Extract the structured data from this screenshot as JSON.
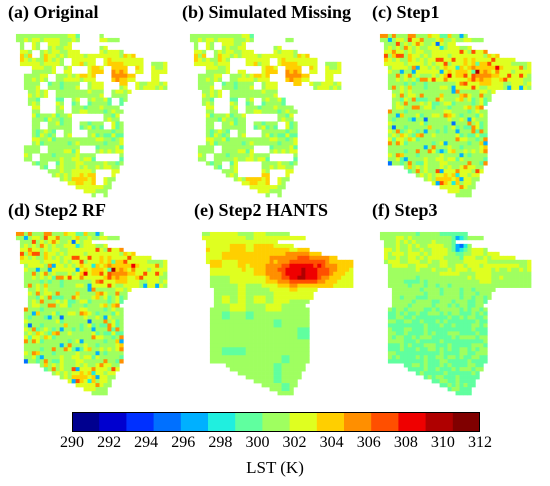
{
  "panels": [
    {
      "title": "(a) Original",
      "method": "original"
    },
    {
      "title": "(b) Simulated Missing",
      "method": "missing"
    },
    {
      "title": "(c) Step1",
      "method": "step1"
    },
    {
      "title": "(d) Step2 RF",
      "method": "rf"
    },
    {
      "title": "(e) Step2 HANTS",
      "method": "hants"
    },
    {
      "title": "(f) Step3",
      "method": "step3"
    }
  ],
  "colorbar": {
    "label": "LST (K)",
    "min": 290,
    "max": 312,
    "ticks": [
      "290",
      "292",
      "294",
      "296",
      "298",
      "300",
      "302",
      "304",
      "306",
      "308",
      "310",
      "312"
    ],
    "colors": [
      "#00008f",
      "#0000cf",
      "#0030ff",
      "#0070ff",
      "#00b0ff",
      "#20efdf",
      "#60ff9f",
      "#9fff60",
      "#dfff20",
      "#ffcf00",
      "#ff8f00",
      "#ff4f00",
      "#ef0000",
      "#af0000",
      "#800000"
    ]
  }
}
